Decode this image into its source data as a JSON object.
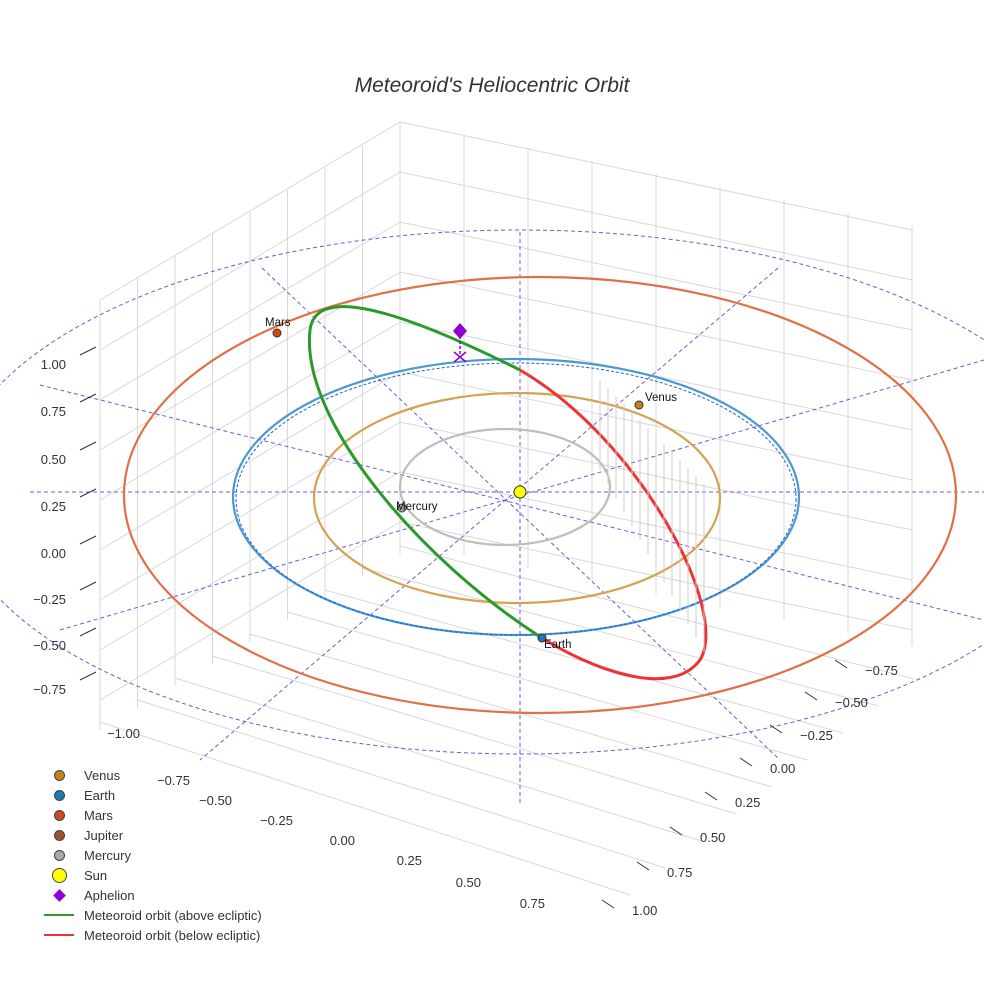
{
  "chart_data": {
    "type": "scatter3d",
    "title": "Meteoroid's Heliocentric Orbit",
    "axes": {
      "x": {
        "ticks": [
          "−1.00",
          "−0.75",
          "−0.50",
          "−0.25",
          "0.00",
          "0.25",
          "0.50",
          "0.75"
        ],
        "range": [
          -1,
          1
        ]
      },
      "y": {
        "ticks": [
          "−0.75",
          "−0.50",
          "−0.25",
          "0.00",
          "0.25",
          "0.50",
          "0.75",
          "1.00"
        ],
        "range": [
          -1,
          1
        ]
      },
      "z": {
        "ticks": [
          "1.00",
          "0.75",
          "0.50",
          "0.25",
          "0.00",
          "−0.25",
          "−0.50",
          "−0.75"
        ],
        "range": [
          -1,
          1
        ]
      }
    },
    "planets": [
      {
        "name": "Venus",
        "label": "Venus",
        "color": "#c8801a",
        "orbit_color": "#d4a250"
      },
      {
        "name": "Earth",
        "label": "Earth",
        "color": "#1f77b4",
        "orbit_color": "#4a9ad0"
      },
      {
        "name": "Mars",
        "label": "Mars",
        "color": "#d04a1a",
        "orbit_color": "#e07045"
      },
      {
        "name": "Jupiter",
        "label": "",
        "color": "#a0522d",
        "orbit_color": "#a0522d"
      },
      {
        "name": "Mercury",
        "label": "Mercury",
        "color": "#b0a8a0",
        "orbit_color": "#c4bcb6"
      }
    ],
    "sun": {
      "name": "Sun",
      "color": "#ffff00"
    },
    "aphelion": {
      "name": "Aphelion",
      "color": "#9400d3"
    },
    "meteoroid": [
      {
        "name": "Meteoroid orbit (above ecliptic)",
        "color": "#2a9a2a"
      },
      {
        "name": "Meteoroid orbit (below ecliptic)",
        "color": "#ee3333"
      }
    ],
    "legend_position": "bottom-left"
  }
}
